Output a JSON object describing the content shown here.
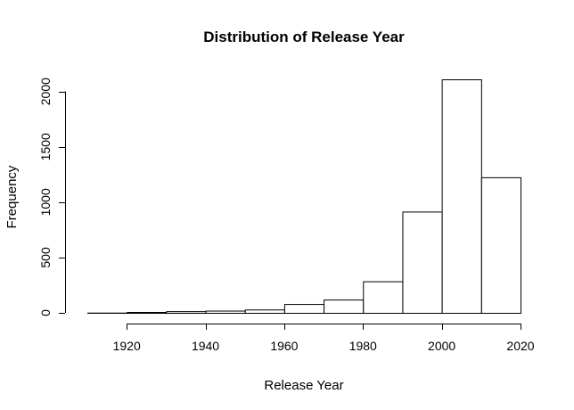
{
  "chart_data": {
    "type": "bar",
    "title": "Distribution of Release Year",
    "xlabel": "Release Year",
    "ylabel": "Frequency",
    "bins": [
      {
        "x0": 1910,
        "x1": 1920,
        "value": 2
      },
      {
        "x0": 1920,
        "x1": 1930,
        "value": 8
      },
      {
        "x0": 1930,
        "x1": 1940,
        "value": 15
      },
      {
        "x0": 1940,
        "x1": 1950,
        "value": 20
      },
      {
        "x0": 1950,
        "x1": 1960,
        "value": 30
      },
      {
        "x0": 1960,
        "x1": 1970,
        "value": 80
      },
      {
        "x0": 1970,
        "x1": 1980,
        "value": 120
      },
      {
        "x0": 1980,
        "x1": 1990,
        "value": 285
      },
      {
        "x0": 1990,
        "x1": 2000,
        "value": 915
      },
      {
        "x0": 2000,
        "x1": 2010,
        "value": 2110
      },
      {
        "x0": 2010,
        "x1": 2020,
        "value": 1225
      }
    ],
    "x_ticks": [
      1920,
      1940,
      1960,
      1980,
      2000,
      2020
    ],
    "y_ticks": [
      0,
      500,
      1000,
      1500,
      2000
    ],
    "xlim": [
      1910,
      2020
    ],
    "ylim": [
      0,
      2110
    ],
    "grid": false,
    "legend": "none"
  }
}
